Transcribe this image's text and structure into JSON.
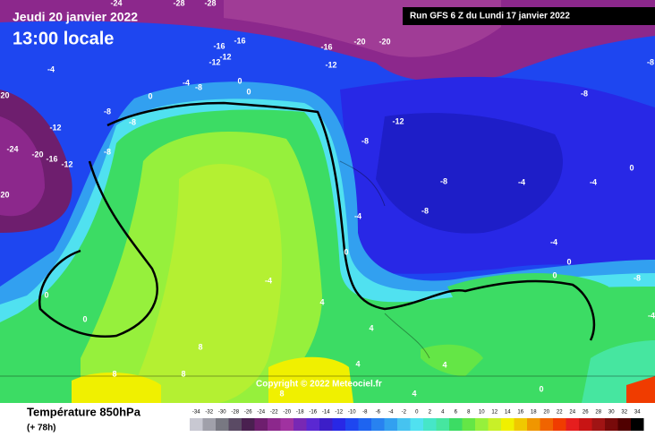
{
  "header": {
    "date": "Jeudi 20 janvier 2022",
    "time": "13:00 locale",
    "run": "Run GFS 6 Z du Lundi 17 janvier 2022"
  },
  "copyright": "Copyright © 2022 Meteociel.fr",
  "legend": {
    "title": "Température 850hPa",
    "subtitle": "(+ 78h)",
    "scale": {
      "ticks": [
        -34,
        -32,
        -30,
        -28,
        -26,
        -24,
        -22,
        -20,
        -18,
        -16,
        -14,
        -12,
        -10,
        -8,
        -6,
        -4,
        -2,
        0,
        2,
        4,
        6,
        8,
        10,
        12,
        14,
        16,
        18,
        20,
        22,
        24,
        26,
        28,
        30,
        32,
        34
      ],
      "colors": [
        "#c8c8d2",
        "#a0a0aa",
        "#787882",
        "#5a4a64",
        "#4a2050",
        "#6e1e6e",
        "#8c288c",
        "#a032a0",
        "#7828b4",
        "#5a28d2",
        "#3c1ec8",
        "#2828e6",
        "#1e46f0",
        "#1e64f0",
        "#2882f0",
        "#32a0f0",
        "#46c3f0",
        "#50e1f0",
        "#46e6c8",
        "#46e6a0",
        "#3cdc64",
        "#64e646",
        "#96f03c",
        "#c8f028",
        "#f0f000",
        "#f0c800",
        "#f09600",
        "#f06400",
        "#f03c00",
        "#e61e1e",
        "#c81414",
        "#a01414",
        "#780a0a",
        "#500000",
        "#000000"
      ]
    }
  },
  "contour_labels": [
    "-24",
    "-28",
    "-28",
    "-16",
    "-16",
    "-12",
    "-12",
    "-16",
    "-20",
    "-20",
    "-12",
    "-4",
    "0",
    "-4",
    "-8",
    "0",
    "0",
    "-8",
    "-12",
    "-8",
    "-24",
    "-20",
    "-16",
    "-12",
    "-8",
    "-20",
    "-20",
    "-12",
    "-8",
    "-8",
    "-8",
    "-8",
    "-4",
    "-8",
    "-4",
    "0",
    "-4",
    "-4",
    "0",
    "0",
    "-4",
    "4",
    "0",
    "0",
    "8",
    "8",
    "8",
    "4",
    "4",
    "4",
    "4",
    "0",
    "8",
    "-8",
    "-4",
    "0"
  ]
}
